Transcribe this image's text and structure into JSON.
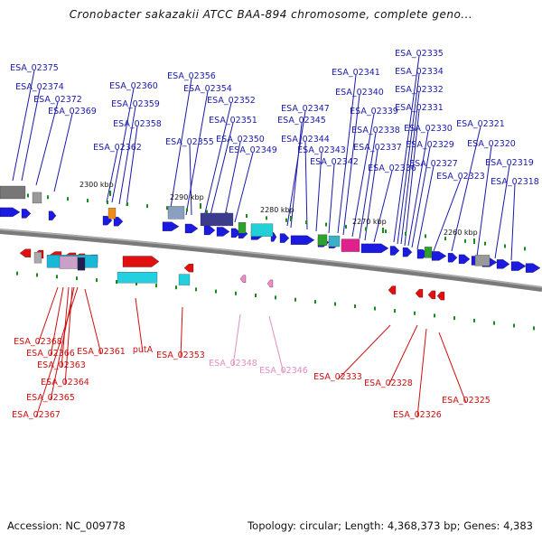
{
  "title": "Cronobacter sakazakii ATCC BAA-894 chromosome, complete geno...",
  "footer": {
    "accession": "Accession: NC_009778",
    "summary": "Topology: circular; Length: 4,368,373 bp; Genes: 4,383"
  },
  "colors": {
    "forward_gene": "#1a1ae0",
    "reverse_gene": "#e01010",
    "forward_label": "#1a1aa8",
    "reverse_label": "#cc1010",
    "pink_gene": "#f08ac8",
    "pink_label": "#e090c0",
    "backbone": "#7a7a7a",
    "tick": "#1a8a1a"
  },
  "scale_ticks": [
    "2300 kbp",
    "2290 kbp",
    "2280 kbp",
    "2270 kbp",
    "2260 kbp"
  ],
  "top_labels": [
    "ESA_02375",
    "ESA_02374",
    "ESA_02372",
    "ESA_02369",
    "ESA_02360",
    "ESA_02359",
    "ESA_02358",
    "ESA_02362",
    "ESA_02356",
    "ESA_02354",
    "ESA_02352",
    "ESA_02351",
    "ESA_02355",
    "ESA_02350",
    "ESA_02349",
    "ESA_02347",
    "ESA_02345",
    "ESA_02344",
    "ESA_02343",
    "ESA_02342",
    "ESA_02341",
    "ESA_02340",
    "ESA_02339",
    "ESA_02338",
    "ESA_02337",
    "ESA_02336",
    "ESA_02335",
    "ESA_02334",
    "ESA_02332",
    "ESA_02331",
    "ESA_02330",
    "ESA_02329",
    "ESA_02327",
    "ESA_02323",
    "ESA_02321",
    "ESA_02320",
    "ESA_02319",
    "ESA_02318"
  ],
  "bottom_labels": [
    "ESA_02368",
    "ESA_02366",
    "ESA_02363",
    "ESA_02364",
    "ESA_02365",
    "ESA_02367",
    "ESA_02361",
    "putA",
    "ESA_02353",
    "ESA_02348",
    "ESA_02346",
    "ESA_02333",
    "ESA_02328",
    "ESA_02326",
    "ESA_02325"
  ]
}
